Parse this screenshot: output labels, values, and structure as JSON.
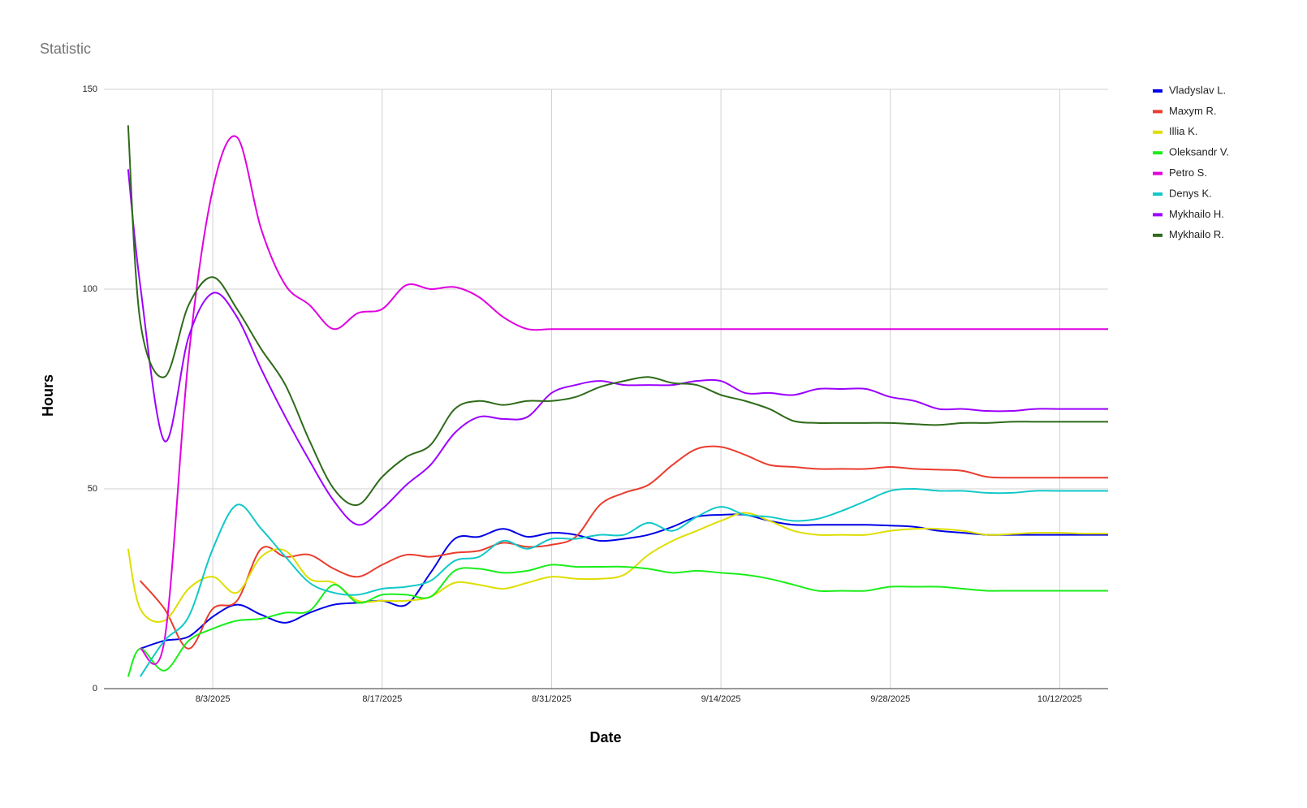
{
  "chart_data": {
    "type": "line",
    "title": "Statistic",
    "x_label": "Date",
    "y_label": "Hours",
    "x": [
      "7/27/2025",
      "7/28/2025",
      "7/30/2025",
      "8/1/2025",
      "8/3/2025",
      "8/5/2025",
      "8/7/2025",
      "8/9/2025",
      "8/11/2025",
      "8/13/2025",
      "8/15/2025",
      "8/17/2025",
      "8/19/2025",
      "8/21/2025",
      "8/23/2025",
      "8/25/2025",
      "8/27/2025",
      "8/29/2025",
      "8/31/2025",
      "9/2/2025",
      "9/4/2025",
      "9/6/2025",
      "9/8/2025",
      "9/10/2025",
      "9/12/2025",
      "9/14/2025",
      "9/16/2025",
      "9/18/2025",
      "9/20/2025",
      "9/22/2025",
      "9/24/2025",
      "9/26/2025",
      "9/28/2025",
      "9/30/2025",
      "10/2/2025",
      "10/4/2025",
      "10/6/2025",
      "10/8/2025",
      "10/10/2025",
      "10/12/2025",
      "10/14/2025",
      "10/16/2025"
    ],
    "xlim": [
      "7/25/2025",
      "10/16/2025"
    ],
    "xticks": [
      "8/3/2025",
      "8/17/2025",
      "8/31/2025",
      "9/14/2025",
      "9/28/2025",
      "10/12/2025"
    ],
    "ylim": [
      0,
      150
    ],
    "yticks": [
      0,
      50,
      100,
      150
    ],
    "grid": true,
    "legend": "right",
    "series": [
      {
        "name": "Vladyslav L.",
        "color": "#0000e6",
        "values": [
          null,
          10,
          12,
          13,
          18,
          21,
          18.5,
          16.5,
          19,
          21,
          21.5,
          22,
          21,
          29,
          37.5,
          38,
          40,
          38,
          39,
          38.5,
          37,
          37.5,
          38.5,
          40.5,
          43,
          43.5,
          43.5,
          42,
          41,
          41,
          41,
          41,
          40.8,
          40.5,
          39.5,
          39,
          38.5,
          38.5,
          38.5,
          38.5,
          38.5,
          38.5
        ]
      },
      {
        "name": "Maxym R.",
        "color": "#ea3c2e",
        "values": [
          null,
          27,
          20,
          10,
          20,
          22,
          35,
          33,
          33.5,
          30,
          28,
          31,
          33.5,
          33,
          34,
          34.5,
          36.5,
          35.5,
          36,
          38,
          46,
          49,
          51,
          56,
          60,
          60.5,
          58.5,
          56,
          55.5,
          55,
          55,
          55,
          55.5,
          55,
          54.8,
          54.5,
          53,
          52.8,
          52.8,
          52.8,
          52.8,
          52.8
        ]
      },
      {
        "name": "Illia K.",
        "color": "#dede00",
        "values": [
          35,
          20,
          17,
          25,
          28,
          24,
          33,
          34.5,
          27.5,
          26.5,
          22,
          22,
          22,
          23,
          26.5,
          26,
          25,
          26.5,
          28,
          27.5,
          27.5,
          28.5,
          33.5,
          37,
          39.5,
          42,
          44,
          42,
          39.5,
          38.5,
          38.5,
          38.5,
          39.5,
          40,
          40,
          39.5,
          38.5,
          38.7,
          39,
          39,
          38.8,
          38.8
        ]
      },
      {
        "name": "Oleksandr V.",
        "color": "#1aee1a",
        "values": [
          3,
          10,
          4.5,
          12,
          15,
          17,
          17.5,
          19,
          19.5,
          26,
          21.5,
          23.5,
          23.5,
          23,
          29.5,
          30,
          29,
          29.5,
          31,
          30.5,
          30.5,
          30.5,
          30,
          29,
          29.5,
          29,
          28.5,
          27.5,
          26,
          24.5,
          24.5,
          24.5,
          25.5,
          25.5,
          25.5,
          25,
          24.5,
          24.5,
          24.5,
          24.5,
          24.5,
          24.5
        ]
      },
      {
        "name": "Petro S.",
        "color": "#e000e0",
        "values": [
          null,
          10,
          12,
          83,
          125,
          138,
          115,
          101,
          96,
          90,
          94,
          95,
          101,
          100,
          100.5,
          98,
          93,
          90,
          90,
          90,
          90,
          90,
          90,
          90,
          90,
          90,
          90,
          90,
          90,
          90,
          90,
          90,
          90,
          90,
          90,
          90,
          90,
          90,
          90,
          90,
          90,
          90
        ]
      },
      {
        "name": "Denys K.",
        "color": "#12c8c8",
        "values": [
          null,
          3,
          12,
          18,
          35,
          46,
          40,
          33,
          26.5,
          24,
          23.5,
          25,
          25.5,
          27,
          32,
          33,
          37,
          35,
          37.5,
          37.5,
          38.5,
          38.5,
          41.5,
          39.5,
          43,
          45.5,
          43.5,
          43,
          42,
          42.5,
          44.5,
          47,
          49.5,
          50,
          49.5,
          49.5,
          49,
          49,
          49.5,
          49.5,
          49.5,
          49.5
        ]
      },
      {
        "name": "Mykhailo H.",
        "color": "#9c00ff",
        "values": [
          130,
          101,
          62,
          88,
          99,
          93,
          80,
          68,
          57,
          47,
          41,
          45,
          51,
          56,
          64,
          68,
          67.5,
          68,
          74,
          76,
          77,
          76,
          76,
          76,
          77,
          77,
          74,
          74,
          73.5,
          75,
          75,
          75,
          73,
          72,
          70,
          70,
          69.5,
          69.5,
          70,
          70,
          70,
          70
        ]
      },
      {
        "name": "Mykhailo R.",
        "color": "#2e6b1a",
        "values": [
          141,
          92,
          78,
          96,
          103,
          95,
          85,
          76,
          62,
          50,
          46,
          53,
          58,
          61,
          70,
          72,
          71,
          72,
          72,
          73,
          75.5,
          77,
          78,
          76.5,
          76,
          73.5,
          72,
          70,
          67,
          66.5,
          66.5,
          66.5,
          66.5,
          66.2,
          66,
          66.5,
          66.5,
          66.8,
          66.8,
          66.8,
          66.8,
          66.8
        ]
      }
    ]
  }
}
